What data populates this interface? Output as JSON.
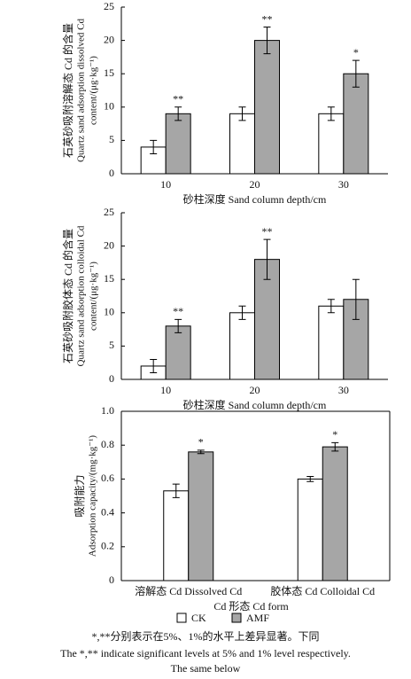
{
  "chart_data": [
    {
      "type": "bar",
      "ylabel": [
        "石英砂吸附溶解态 Cd 的含量",
        "Quartz sand adsorption dissolved Cd",
        "content/(μg·kg⁻¹)"
      ],
      "xlabel": "砂柱深度 Sand column depth/cm",
      "categories": [
        "10",
        "20",
        "30"
      ],
      "series": [
        {
          "name": "CK",
          "color": "#ffffff",
          "values": [
            4,
            9,
            9
          ],
          "errors": [
            1,
            1,
            1
          ]
        },
        {
          "name": "AMF",
          "color": "#a6a6a6",
          "values": [
            9,
            20,
            15
          ],
          "errors": [
            1,
            2,
            2
          ],
          "annotations": [
            "**",
            "**",
            "*"
          ]
        }
      ],
      "ylim": [
        0,
        25
      ],
      "yticks": [
        0,
        5,
        10,
        15,
        20,
        25
      ]
    },
    {
      "type": "bar",
      "ylabel": [
        "石英砂吸附胶体态 Cd 的含量",
        "Quartz sand adsorption colloidal Cd",
        "content/(μg·kg⁻¹)"
      ],
      "xlabel": "砂柱深度 Sand column depth/cm",
      "categories": [
        "10",
        "20",
        "30"
      ],
      "series": [
        {
          "name": "CK",
          "color": "#ffffff",
          "values": [
            2,
            10,
            11
          ],
          "errors": [
            1,
            1,
            1
          ]
        },
        {
          "name": "AMF",
          "color": "#a6a6a6",
          "values": [
            8,
            18,
            12
          ],
          "errors": [
            1,
            3,
            3
          ],
          "annotations": [
            "**",
            "**",
            null
          ]
        }
      ],
      "ylim": [
        0,
        25
      ],
      "yticks": [
        0,
        5,
        10,
        15,
        20,
        25
      ]
    },
    {
      "type": "bar",
      "ylabel": [
        "吸附能力",
        "Adsorption capacity/(mg·kg⁻¹)"
      ],
      "xlabel": "Cd 形态  Cd form",
      "categories": [
        "溶解态 Cd Dissolved Cd",
        "胶体态 Cd Colloidal Cd"
      ],
      "series": [
        {
          "name": "CK",
          "color": "#ffffff",
          "values": [
            0.53,
            0.6
          ],
          "errors": [
            0.04,
            0.015
          ]
        },
        {
          "name": "AMF",
          "color": "#a6a6a6",
          "values": [
            0.76,
            0.79
          ],
          "errors": [
            0.01,
            0.025
          ],
          "annotations": [
            "*",
            "*"
          ]
        }
      ],
      "ylim": [
        0,
        1
      ],
      "yticks": [
        0,
        0.2,
        0.4,
        0.6,
        0.8,
        {
          "value": 1,
          "label": "1.0"
        }
      ]
    }
  ],
  "notes": [
    "*,**分别表示在5%、1%的水平上差异显著。下同",
    "The *,** indicate significant levels at 5% and 1% level respectively.",
    "The same below"
  ]
}
